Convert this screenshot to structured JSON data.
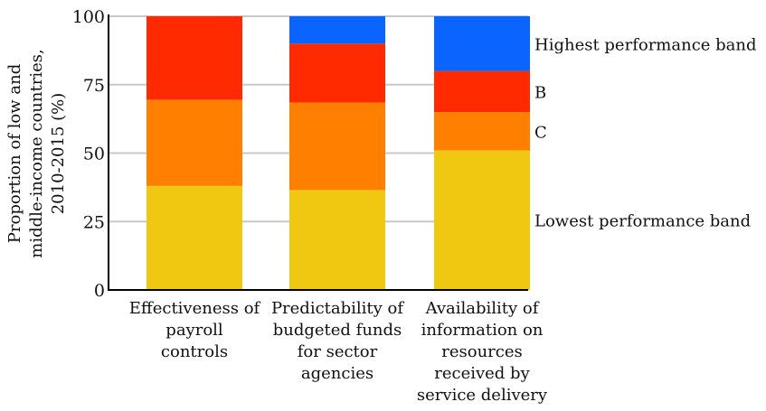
{
  "chart_data": {
    "type": "bar",
    "stacked": true,
    "categories": [
      [
        "Effectiveness of",
        "payroll",
        "controls"
      ],
      [
        "Predictability of",
        "budgeted funds",
        "for sector",
        "agencies"
      ],
      [
        "Availability of",
        "information on",
        "resources",
        "received by",
        "service delivery"
      ]
    ],
    "series": [
      {
        "name": "Lowest performance band",
        "color": "#f0c812",
        "values": [
          38,
          36.5,
          51
        ]
      },
      {
        "name": "C",
        "color": "#ff8000",
        "values": [
          31.5,
          32,
          14
        ]
      },
      {
        "name": "B",
        "color": "#ff2a00",
        "values": [
          30.5,
          21.5,
          15
        ]
      },
      {
        "name": "Highest performance band",
        "color": "#0a64ff",
        "values": [
          0,
          10,
          20
        ]
      }
    ],
    "ylabel": [
      "Proportion of low and",
      "middle-income countries,",
      "2010-2015 (%)"
    ],
    "ylim": [
      0,
      100
    ],
    "yticks": [
      "0",
      "25",
      "50",
      "75",
      "100"
    ],
    "grid": true,
    "legend_placement": "right"
  }
}
